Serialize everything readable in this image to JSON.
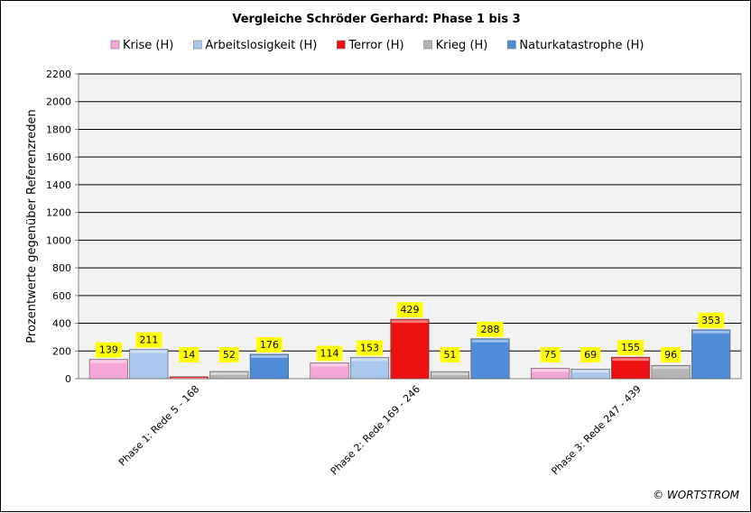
{
  "chart_data": {
    "type": "bar",
    "title": "Vergleiche Schröder Gerhard: Phase 1 bis 3",
    "ylabel": "Prozentwerte  gegenüber Referenzreden",
    "xlabel": "",
    "ylim": [
      0,
      2200
    ],
    "yticks": [
      0,
      200,
      400,
      600,
      800,
      1000,
      1200,
      1400,
      1600,
      1800,
      2000,
      2200
    ],
    "grid": true,
    "legend_position": "top",
    "categories": [
      "Phase 1: Rede 5 - 168",
      "Phase 2: Rede 169 - 246",
      "Phase 3: Rede 247 - 439"
    ],
    "series": [
      {
        "name": "Krise (H)",
        "color": "#f4a6d8",
        "values": [
          139,
          114,
          75
        ]
      },
      {
        "name": "Arbeitslosigkeit (H)",
        "color": "#a9c6ec",
        "values": [
          211,
          153,
          69
        ]
      },
      {
        "name": "Terror (H)",
        "color": "#ee1111",
        "values": [
          14,
          429,
          155
        ]
      },
      {
        "name": "Krieg (H)",
        "color": "#b4b4b4",
        "values": [
          52,
          51,
          96
        ]
      },
      {
        "name": "Naturkatastrophe (H)",
        "color": "#4f8bd6",
        "values": [
          176,
          288,
          353
        ]
      }
    ],
    "data_label_bg": "#ffff00",
    "plot_bg": "#f2f2f2"
  },
  "credit": "© WORTSTROM"
}
